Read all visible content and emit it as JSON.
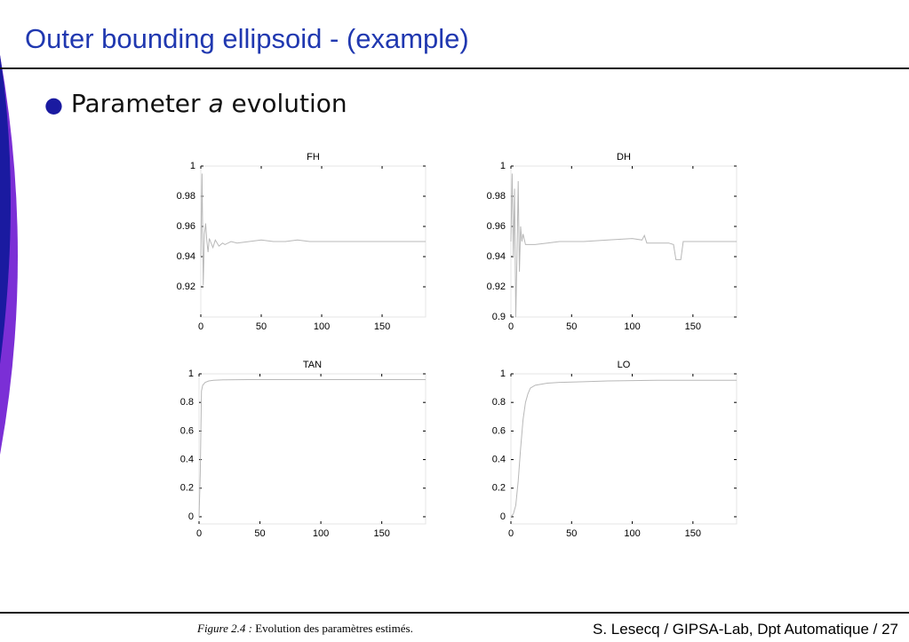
{
  "title": "Outer bounding ellipsoid - (example)",
  "bullet": {
    "before": "Parameter",
    "italic": "a",
    "after": "evolution"
  },
  "caption": {
    "label": "Figure 2.4 :",
    "text": "Evolution des paramètres estimés."
  },
  "footer": "S. Lesecq / GIPSA-Lab, Dpt Automatique / 27",
  "chart_data": [
    {
      "type": "line",
      "title": "FH",
      "xlim": [
        0,
        186
      ],
      "xticks": [
        0,
        50,
        100,
        150
      ],
      "ylim": [
        0.9,
        1
      ],
      "yticks": [
        0.92,
        0.94,
        0.96,
        0.98,
        1
      ],
      "x": [
        0,
        1,
        2,
        3,
        4,
        5,
        6,
        7,
        8,
        10,
        12,
        15,
        18,
        20,
        25,
        30,
        40,
        50,
        60,
        70,
        80,
        90,
        100,
        120,
        140,
        160,
        186
      ],
      "series": [
        {
          "color": "#b8b8b8",
          "values": [
            0.94,
            0.995,
            0.921,
            0.955,
            0.962,
            0.95,
            0.943,
            0.952,
            0.95,
            0.946,
            0.951,
            0.947,
            0.949,
            0.948,
            0.95,
            0.949,
            0.95,
            0.951,
            0.95,
            0.95,
            0.951,
            0.95,
            0.95,
            0.95,
            0.95,
            0.95,
            0.95
          ]
        }
      ]
    },
    {
      "type": "line",
      "title": "DH",
      "xlim": [
        0,
        186
      ],
      "xticks": [
        0,
        50,
        100,
        150
      ],
      "ylim": [
        0.9,
        1
      ],
      "yticks": [
        0.9,
        0.92,
        0.94,
        0.96,
        0.98,
        1
      ],
      "x": [
        0,
        1,
        2,
        3,
        4,
        5,
        6,
        7,
        8,
        9,
        10,
        12,
        15,
        20,
        30,
        40,
        50,
        60,
        80,
        100,
        108,
        110,
        112,
        130,
        134,
        136,
        140,
        142,
        160,
        186
      ],
      "series": [
        {
          "color": "#b8b8b8",
          "values": [
            0.95,
            0.995,
            0.94,
            0.985,
            0.9,
            0.94,
            0.99,
            0.93,
            0.96,
            0.95,
            0.955,
            0.948,
            0.948,
            0.948,
            0.949,
            0.95,
            0.95,
            0.95,
            0.951,
            0.952,
            0.951,
            0.954,
            0.949,
            0.949,
            0.948,
            0.938,
            0.938,
            0.95,
            0.95,
            0.95
          ]
        }
      ]
    },
    {
      "type": "line",
      "title": "TAN",
      "xlim": [
        0,
        186
      ],
      "xticks": [
        0,
        50,
        100,
        150
      ],
      "ylim": [
        -0.05,
        1
      ],
      "yticks": [
        0,
        0.2,
        0.4,
        0.6,
        0.8,
        1
      ],
      "x": [
        0,
        1,
        2,
        3,
        5,
        8,
        12,
        20,
        40,
        80,
        120,
        160,
        186
      ],
      "series": [
        {
          "color": "#b8b8b8",
          "values": [
            0,
            0.3,
            0.88,
            0.92,
            0.94,
            0.95,
            0.955,
            0.958,
            0.96,
            0.96,
            0.96,
            0.96,
            0.96
          ]
        }
      ]
    },
    {
      "type": "line",
      "title": "LO",
      "xlim": [
        0,
        186
      ],
      "xticks": [
        0,
        50,
        100,
        150
      ],
      "ylim": [
        -0.05,
        1
      ],
      "yticks": [
        0,
        0.2,
        0.4,
        0.6,
        0.8,
        1
      ],
      "x": [
        0,
        2,
        4,
        6,
        8,
        10,
        12,
        14,
        16,
        20,
        30,
        40,
        60,
        80,
        120,
        160,
        186
      ],
      "series": [
        {
          "color": "#b8b8b8",
          "values": [
            0,
            0.02,
            0.08,
            0.25,
            0.48,
            0.68,
            0.8,
            0.86,
            0.9,
            0.92,
            0.935,
            0.94,
            0.945,
            0.95,
            0.955,
            0.955,
            0.955
          ]
        }
      ]
    }
  ]
}
